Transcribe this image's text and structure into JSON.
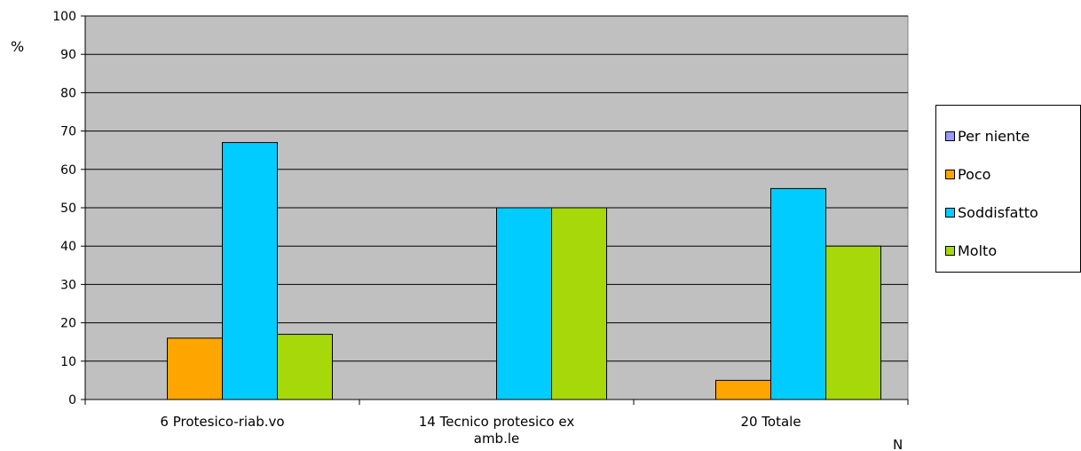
{
  "chart_data": {
    "type": "bar",
    "ylabel": "%",
    "xlabel": "N",
    "ylim": [
      0,
      100
    ],
    "yticks": [
      0,
      10,
      20,
      30,
      40,
      50,
      60,
      70,
      80,
      90,
      100
    ],
    "categories": [
      [
        "6 Protesico-riab.vo"
      ],
      [
        "14 Tecnico protesico ex",
        "amb.le"
      ],
      [
        "20 Totale"
      ]
    ],
    "series": [
      {
        "name": "Per niente",
        "color": "#9999ff",
        "values": [
          0,
          0,
          0
        ]
      },
      {
        "name": "Poco",
        "color": "#ffa500",
        "values": [
          16,
          0,
          5
        ]
      },
      {
        "name": "Soddisfatto",
        "color": "#00ccff",
        "values": [
          67,
          50,
          55
        ]
      },
      {
        "name": "Molto",
        "color": "#a6d80a",
        "values": [
          17,
          50,
          40
        ]
      }
    ],
    "grid": true,
    "legend_position": "right",
    "plot_background": "#c0c0c0"
  }
}
